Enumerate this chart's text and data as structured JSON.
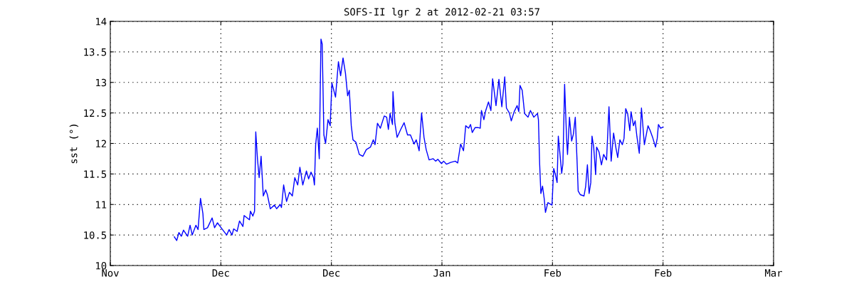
{
  "chart_data": {
    "type": "line",
    "title": "SOFS-II lgr 2 at 2012-02-21 03:57",
    "ylabel": "sst (°)",
    "x": [
      "2011-11-28T00:00",
      "2011-11-28T10:00",
      "2011-11-28T19:00",
      "2011-11-29T05:00",
      "2011-11-29T14:00",
      "2011-11-30T07:00",
      "2011-11-30T17:00",
      "2011-12-01T02:00",
      "2011-12-01T17:00",
      "2011-12-02T02:00",
      "2011-12-02T12:00",
      "2011-12-02T22:00",
      "2011-12-03T02:00",
      "2011-12-03T17:00",
      "2011-12-04T12:00",
      "2011-12-04T22:00",
      "2011-12-05T10:00",
      "2011-12-06T05:00",
      "2011-12-07T00:00",
      "2011-12-07T10:00",
      "2011-12-07T22:00",
      "2011-12-08T05:00",
      "2011-12-08T19:00",
      "2011-12-09T05:00",
      "2011-12-09T19:00",
      "2011-12-10T00:00",
      "2011-12-10T22:00",
      "2011-12-11T02:00",
      "2011-12-11T12:00",
      "2011-12-11T19:00",
      "2011-12-12T00:00",
      "2011-12-12T07:00",
      "2011-12-12T14:00",
      "2011-12-12T22:00",
      "2011-12-13T07:00",
      "2011-12-13T17:00",
      "2011-12-14T00:00",
      "2011-12-14T12:00",
      "2011-12-15T05:00",
      "2011-12-15T14:00",
      "2011-12-16T05:00",
      "2011-12-16T10:00",
      "2011-12-16T19:00",
      "2011-12-17T07:00",
      "2011-12-17T19:00",
      "2011-12-18T07:00",
      "2011-12-18T17:00",
      "2011-12-19T05:00",
      "2011-12-19T14:00",
      "2011-12-20T02:00",
      "2011-12-20T17:00",
      "2011-12-21T02:00",
      "2011-12-21T12:00",
      "2011-12-21T22:00",
      "2011-12-22T02:00",
      "2011-12-22T07:00",
      "2011-12-22T14:00",
      "2011-12-22T22:00",
      "2011-12-23T05:00",
      "2011-12-23T10:00",
      "2011-12-23T17:00",
      "2011-12-24T00:00",
      "2011-12-24T10:00",
      "2011-12-24T19:00",
      "2011-12-25T02:00",
      "2011-12-25T17:00",
      "2011-12-26T05:00",
      "2011-12-26T14:00",
      "2011-12-27T00:00",
      "2011-12-27T10:00",
      "2011-12-27T19:00",
      "2011-12-28T02:00",
      "2011-12-28T10:00",
      "2011-12-28T17:00",
      "2011-12-29T05:00",
      "2011-12-29T19:00",
      "2011-12-30T10:00",
      "2011-12-31T00:00",
      "2011-12-31T17:00",
      "2012-01-01T05:00",
      "2012-01-01T12:00",
      "2012-01-01T22:00",
      "2012-01-02T10:00",
      "2012-01-03T02:00",
      "2012-01-03T12:00",
      "2012-01-03T19:00",
      "2012-01-04T02:00",
      "2012-01-04T12:00",
      "2012-01-04T14:00",
      "2012-01-04T22:00",
      "2012-01-05T07:00",
      "2012-01-05T22:00",
      "2012-01-06T12:00",
      "2012-01-07T02:00",
      "2012-01-07T14:00",
      "2012-01-08T05:00",
      "2012-01-08T14:00",
      "2012-01-09T02:00",
      "2012-01-09T12:00",
      "2012-01-09T22:00",
      "2012-01-10T07:00",
      "2012-01-10T19:00",
      "2012-01-11T12:00",
      "2012-01-11T22:00",
      "2012-01-12T07:00",
      "2012-01-12T22:00",
      "2012-01-13T07:00",
      "2012-01-13T19:00",
      "2012-01-14T12:00",
      "2012-01-15T07:00",
      "2012-01-15T17:00",
      "2012-01-16T05:00",
      "2012-01-16T17:00",
      "2012-01-17T02:00",
      "2012-01-17T14:00",
      "2012-01-17T22:00",
      "2012-01-18T05:00",
      "2012-01-18T17:00",
      "2012-01-19T05:00",
      "2012-01-19T14:00",
      "2012-01-19T19:00",
      "2012-01-20T05:00",
      "2012-01-20T12:00",
      "2012-01-21T00:00",
      "2012-01-21T10:00",
      "2012-01-21T17:00",
      "2012-01-22T07:00",
      "2012-01-22T19:00",
      "2012-01-23T07:00",
      "2012-01-23T19:00",
      "2012-01-24T02:00",
      "2012-01-24T14:00",
      "2012-01-24T22:00",
      "2012-01-25T10:00",
      "2012-01-25T22:00",
      "2012-01-26T05:00",
      "2012-01-26T10:00",
      "2012-01-26T19:00",
      "2012-01-27T05:00",
      "2012-01-27T19:00",
      "2012-01-28T05:00",
      "2012-01-28T19:00",
      "2012-01-29T10:00",
      "2012-01-29T14:00",
      "2012-01-29T19:00",
      "2012-01-30T00:00",
      "2012-01-30T07:00",
      "2012-01-30T14:00",
      "2012-01-30T19:00",
      "2012-01-31T05:00",
      "2012-01-31T22:00",
      "2012-02-01T05:00",
      "2012-02-01T12:00",
      "2012-02-01T19:00",
      "2012-02-02T00:00",
      "2012-02-02T07:00",
      "2012-02-02T14:00",
      "2012-02-02T19:00",
      "2012-02-03T02:00",
      "2012-02-03T10:00",
      "2012-02-03T14:00",
      "2012-02-03T22:00",
      "2012-02-04T07:00",
      "2012-02-04T14:00",
      "2012-02-04T22:00",
      "2012-02-05T05:00",
      "2012-02-05T10:00",
      "2012-02-05T19:00",
      "2012-02-06T10:00",
      "2012-02-06T17:00",
      "2012-02-07T00:00",
      "2012-02-07T07:00",
      "2012-02-07T14:00",
      "2012-02-07T19:00",
      "2012-02-08T02:00",
      "2012-02-08T10:00",
      "2012-02-08T14:00",
      "2012-02-09T00:00",
      "2012-02-09T10:00",
      "2012-02-09T19:00",
      "2012-02-10T07:00",
      "2012-02-10T17:00",
      "2012-02-11T02:00",
      "2012-02-11T12:00",
      "2012-02-11T22:00",
      "2012-02-12T05:00",
      "2012-02-12T14:00",
      "2012-02-13T00:00",
      "2012-02-13T07:00",
      "2012-02-13T14:00",
      "2012-02-13T22:00",
      "2012-02-14T07:00",
      "2012-02-14T12:00",
      "2012-02-14T22:00",
      "2012-02-15T05:00",
      "2012-02-15T12:00",
      "2012-02-15T22:00",
      "2012-02-16T07:00",
      "2012-02-16T19:00",
      "2012-02-17T10:00",
      "2012-02-17T19:00",
      "2012-02-18T05:00",
      "2012-02-18T17:00",
      "2012-02-19T00:00",
      "2012-02-19T05:00",
      "2012-02-19T14:00",
      "2012-02-20T00:00"
    ],
    "series": [
      {
        "color": "#0000ff",
        "values": [
          10.47,
          10.41,
          10.54,
          10.48,
          10.58,
          10.48,
          10.66,
          10.5,
          10.66,
          10.59,
          11.1,
          10.85,
          10.59,
          10.62,
          10.78,
          10.62,
          10.7,
          10.6,
          10.5,
          10.59,
          10.5,
          10.6,
          10.56,
          10.73,
          10.64,
          10.82,
          10.75,
          10.89,
          10.81,
          10.89,
          12.19,
          11.75,
          11.44,
          11.79,
          11.14,
          11.24,
          11.16,
          10.93,
          10.99,
          10.93,
          11.0,
          10.95,
          11.32,
          11.05,
          11.2,
          11.14,
          11.44,
          11.32,
          11.61,
          11.32,
          11.55,
          11.42,
          11.53,
          11.44,
          11.32,
          11.98,
          12.25,
          11.75,
          13.71,
          13.63,
          12.14,
          12.0,
          12.39,
          12.29,
          12.99,
          12.76,
          13.34,
          13.11,
          13.4,
          13.15,
          12.78,
          12.87,
          12.29,
          12.06,
          12.02,
          11.82,
          11.79,
          11.9,
          11.94,
          12.06,
          11.98,
          12.33,
          12.25,
          12.45,
          12.43,
          12.23,
          12.49,
          12.31,
          12.85,
          12.33,
          12.1,
          12.23,
          12.34,
          12.14,
          12.14,
          11.99,
          12.06,
          11.88,
          12.5,
          12.1,
          11.9,
          11.73,
          11.75,
          11.71,
          11.74,
          11.67,
          11.71,
          11.66,
          11.69,
          11.71,
          11.68,
          11.99,
          11.88,
          12.29,
          12.25,
          12.31,
          12.18,
          12.26,
          12.26,
          12.25,
          12.54,
          12.39,
          12.53,
          12.68,
          12.54,
          13.06,
          12.62,
          13.05,
          12.6,
          13.09,
          12.58,
          12.5,
          12.37,
          12.52,
          12.62,
          12.52,
          12.95,
          12.87,
          12.49,
          12.43,
          12.54,
          12.43,
          12.49,
          12.39,
          11.67,
          11.18,
          11.3,
          11.09,
          10.87,
          11.03,
          10.99,
          11.59,
          11.49,
          11.36,
          12.12,
          11.82,
          11.51,
          11.67,
          12.97,
          12.1,
          11.82,
          12.43,
          12.04,
          12.15,
          12.43,
          11.75,
          11.22,
          11.16,
          11.14,
          11.3,
          11.65,
          11.18,
          11.36,
          12.12,
          11.94,
          11.49,
          11.94,
          11.86,
          11.65,
          11.82,
          11.73,
          12.6,
          11.71,
          12.17,
          11.92,
          11.77,
          12.06,
          11.98,
          12.08,
          12.57,
          12.49,
          12.21,
          12.52,
          12.29,
          12.37,
          12.12,
          11.84,
          12.58,
          11.98,
          12.29,
          12.21,
          12.1,
          11.94,
          12.08,
          12.31,
          12.25,
          12.27
        ]
      }
    ],
    "xlim": [
      "2011-11-17",
      "2012-03-10"
    ],
    "xticks": [
      {
        "value": "2011-11-17",
        "label": "Nov"
      },
      {
        "value": "2011-12-06",
        "label": "Dec"
      },
      {
        "value": "2011-12-25",
        "label": "Dec"
      },
      {
        "value": "2012-01-13",
        "label": "Jan"
      },
      {
        "value": "2012-02-01",
        "label": "Feb"
      },
      {
        "value": "2012-02-20",
        "label": "Feb"
      },
      {
        "value": "2012-03-10",
        "label": "Mar"
      }
    ],
    "ylim": [
      10,
      14
    ],
    "yticks": [
      10,
      10.5,
      11,
      11.5,
      12,
      12.5,
      13,
      13.5,
      14
    ],
    "grid": true,
    "line_style": "solid"
  }
}
